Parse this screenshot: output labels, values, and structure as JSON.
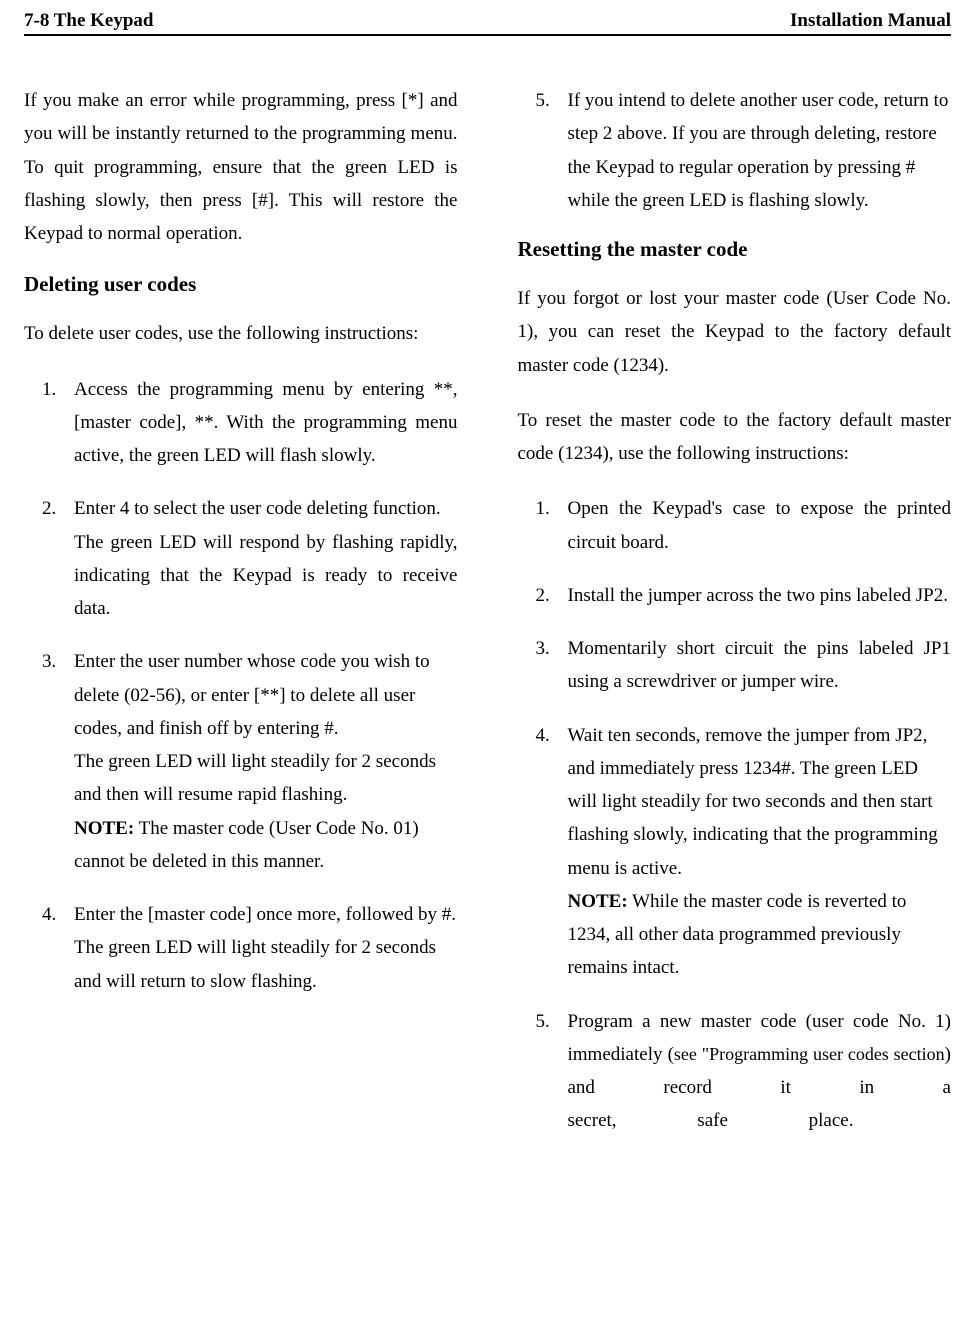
{
  "header": {
    "left": "7-8 The Keypad",
    "right": "Installation Manual"
  },
  "left_col": {
    "intro": "If you make an error while programming, press [*] and you will be instantly returned to the programming menu. To quit programming, ensure that the green LED is flashing slowly, then press [#]. This will restore the Keypad to normal operation.",
    "h2": "Deleting user codes",
    "lead": "To delete user codes, use the following instructions:",
    "items": [
      "Access the programming menu by entering **, [master code], **. With the programming menu active, the green LED will flash slowly.",
      "Enter 4 to select the user code deleting function.\nThe green LED will respond by flashing rapidly, indicating that the Keypad is ready to receive data.",
      "Enter the user number whose code you wish to delete (02-56), or enter [**] to delete all user codes, and finish off by entering #.\nThe green LED will light steadily for 2 seconds and then will resume rapid flashing.",
      "Enter the [master code] once more, followed by #.\nThe green LED will light steadily for 2 seconds and will return to slow flashing."
    ],
    "note3_label": "NOTE:",
    "note3_text": " The master code (User Code No. 01) cannot be deleted in this manner."
  },
  "right_col": {
    "item5": "If you intend to delete another user code, return to step 2 above. If you are through deleting, restore the Keypad to regular operation by pressing # while the green LED is flashing slowly.",
    "h2": "Resetting the master code",
    "para1": "If you forgot or lost your master code (User Code No. 1), you can reset the Keypad to the factory default master code (1234).",
    "para2": "To reset the master code to the factory default master code (1234), use the following instructions:",
    "items": [
      "Open the Keypad's case to expose the printed circuit board.",
      "Install the jumper across the two pins labeled JP2.",
      "Momentarily short circuit the pins labeled JP1 using a screwdriver or jumper wire.",
      "Wait ten seconds, remove the jumper from JP2, and immediately press 1234#. The green LED will light steadily for two seconds and then start flashing slowly, indicating that the programming menu is active."
    ],
    "note4_label": "NOTE:",
    "note4_text": " While the master code is reverted to 1234, all other data programmed previously remains intact.",
    "item5b_pre": "Program a new master code (user code No. 1) immediately (",
    "item5b_small": "see \"Programming user codes section",
    "item5b_post": ") and record it in a secret, safe place."
  }
}
